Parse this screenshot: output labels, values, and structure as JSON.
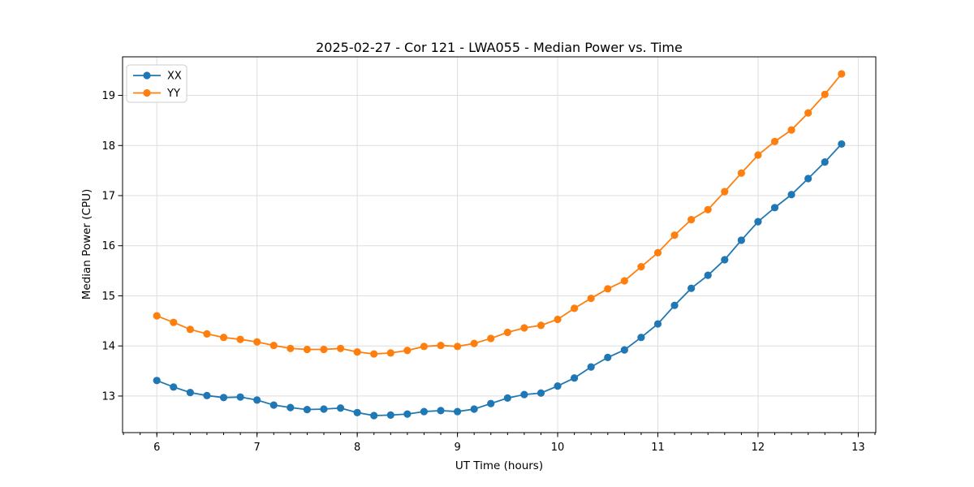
{
  "figure": {
    "title": "2025-02-27 - Cor 121 - LWA055 - Median Power vs. Time",
    "xlabel": "UT Time (hours)",
    "ylabel": "Median Power (CPU)"
  },
  "legend": {
    "position": "upper left",
    "items": [
      {
        "label": "XX",
        "color": "#1f77b4",
        "marker": "circle"
      },
      {
        "label": "YY",
        "color": "#ff7f0e",
        "marker": "circle"
      }
    ]
  },
  "chart_data": {
    "type": "line",
    "title": "2025-02-27 - Cor 121 - LWA055 - Median Power vs. Time",
    "xlabel": "UT Time (hours)",
    "ylabel": "Median Power (CPU)",
    "xlim": [
      5.658,
      13.175
    ],
    "ylim": [
      12.27,
      19.77
    ],
    "xticks": [
      6,
      7,
      8,
      9,
      10,
      11,
      12,
      13
    ],
    "yticks": [
      13,
      14,
      15,
      16,
      17,
      18,
      19
    ],
    "x_minor_step": 0.16667,
    "grid": true,
    "legend_position": "upper left",
    "x": [
      6.0,
      6.1667,
      6.3333,
      6.5,
      6.6667,
      6.8333,
      7.0,
      7.1667,
      7.3333,
      7.5,
      7.6667,
      7.8333,
      8.0,
      8.1667,
      8.3333,
      8.5,
      8.6667,
      8.8333,
      9.0,
      9.1667,
      9.3333,
      9.5,
      9.6667,
      9.8333,
      10.0,
      10.1667,
      10.3333,
      10.5,
      10.6667,
      10.8333,
      11.0,
      11.1667,
      11.3333,
      11.5,
      11.6667,
      11.8333,
      12.0,
      12.1667,
      12.3333,
      12.5,
      12.6667,
      12.8333
    ],
    "series": [
      {
        "name": "XX",
        "color": "#1f77b4",
        "marker": "circle",
        "values": [
          13.31,
          13.18,
          13.07,
          13.01,
          12.97,
          12.98,
          12.92,
          12.82,
          12.77,
          12.73,
          12.74,
          12.76,
          12.67,
          12.61,
          12.62,
          12.64,
          12.69,
          12.71,
          12.69,
          12.74,
          12.85,
          12.96,
          13.03,
          13.06,
          13.2,
          13.36,
          13.58,
          13.77,
          13.92,
          14.17,
          14.44,
          14.81,
          15.15,
          15.41,
          15.72,
          16.11,
          16.48,
          16.76,
          17.02,
          17.34,
          17.67,
          18.03
        ]
      },
      {
        "name": "YY",
        "color": "#ff7f0e",
        "marker": "circle",
        "values": [
          14.6,
          14.47,
          14.33,
          14.24,
          14.17,
          14.13,
          14.08,
          14.01,
          13.95,
          13.93,
          13.93,
          13.95,
          13.88,
          13.84,
          13.86,
          13.91,
          13.99,
          14.01,
          13.99,
          14.05,
          14.15,
          14.27,
          14.36,
          14.41,
          14.53,
          14.75,
          14.95,
          15.14,
          15.3,
          15.58,
          15.86,
          16.21,
          16.52,
          16.72,
          17.08,
          17.45,
          17.81,
          18.08,
          18.31,
          18.65,
          19.02,
          19.43
        ]
      }
    ]
  }
}
